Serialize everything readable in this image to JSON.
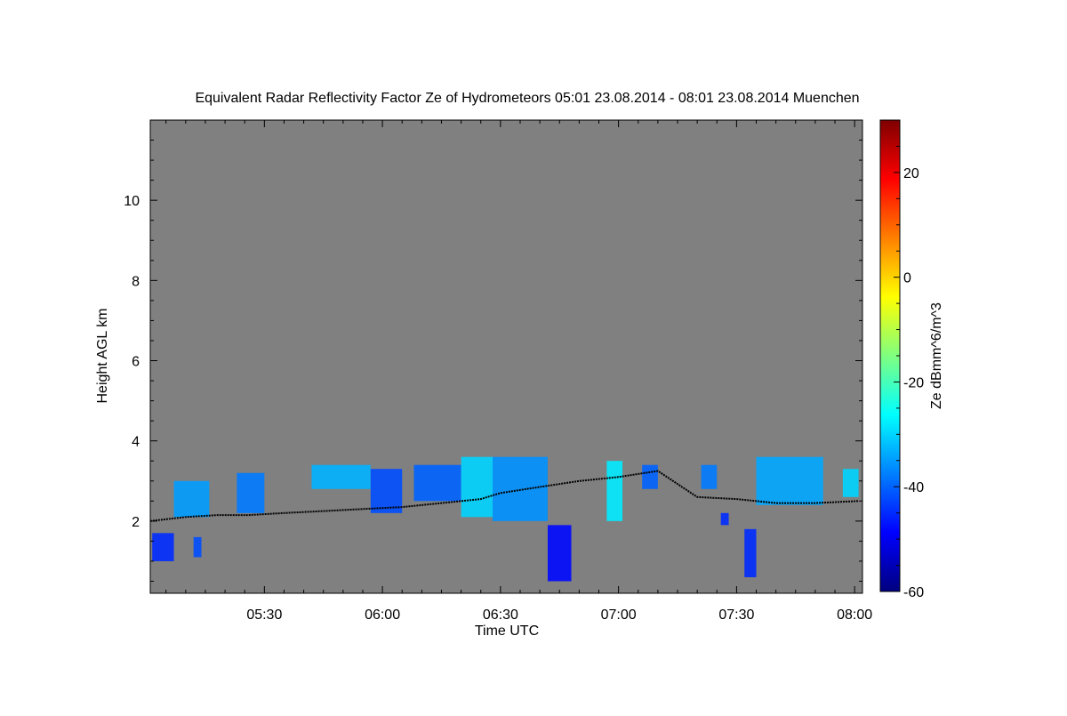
{
  "chart_data": {
    "type": "heatmap",
    "title": "Equivalent Radar Reflectivity Factor Ze of Hydrometeors   05:01 23.08.2014 - 08:01 23.08.2014 Muenchen",
    "xlabel": "Time UTC",
    "ylabel": "Height AGL km",
    "x_range": [
      "05:01",
      "08:01"
    ],
    "xlim_minutes": [
      301,
      482
    ],
    "ylim": [
      0.2,
      12.0
    ],
    "x_ticks": [
      {
        "label": "05:30",
        "minutes": 330
      },
      {
        "label": "06:00",
        "minutes": 360
      },
      {
        "label": "06:30",
        "minutes": 390
      },
      {
        "label": "07:00",
        "minutes": 420
      },
      {
        "label": "07:30",
        "minutes": 450
      },
      {
        "label": "08:00",
        "minutes": 480
      }
    ],
    "y_ticks": [
      2,
      4,
      6,
      8,
      10
    ],
    "no_data_color": "#808080",
    "colorbar": {
      "label": "Ze dBmm^6/m^3",
      "range": [
        -60,
        30
      ],
      "ticks": [
        -60,
        -40,
        -20,
        0,
        20
      ],
      "colormap": "jet"
    },
    "echo_regions": [
      {
        "t0": 301.5,
        "t1": 307,
        "h0": 1.0,
        "h1": 1.7,
        "ze": -45
      },
      {
        "t0": 312,
        "t1": 314,
        "h0": 1.1,
        "h1": 1.6,
        "ze": -42
      },
      {
        "t0": 307,
        "t1": 316,
        "h0": 2.1,
        "h1": 3.0,
        "ze": -35
      },
      {
        "t0": 323,
        "t1": 330,
        "h0": 2.2,
        "h1": 3.2,
        "ze": -38
      },
      {
        "t0": 342,
        "t1": 357,
        "h0": 2.8,
        "h1": 3.4,
        "ze": -33
      },
      {
        "t0": 357,
        "t1": 365,
        "h0": 2.2,
        "h1": 3.3,
        "ze": -42
      },
      {
        "t0": 368,
        "t1": 380,
        "h0": 2.5,
        "h1": 3.4,
        "ze": -40
      },
      {
        "t0": 380,
        "t1": 388,
        "h0": 2.1,
        "h1": 3.6,
        "ze": -30
      },
      {
        "t0": 388,
        "t1": 402,
        "h0": 2.0,
        "h1": 3.6,
        "ze": -36
      },
      {
        "t0": 402,
        "t1": 408,
        "h0": 0.5,
        "h1": 1.9,
        "ze": -48
      },
      {
        "t0": 417,
        "t1": 421,
        "h0": 2.0,
        "h1": 3.5,
        "ze": -28
      },
      {
        "t0": 426,
        "t1": 430,
        "h0": 2.8,
        "h1": 3.4,
        "ze": -40
      },
      {
        "t0": 441,
        "t1": 445,
        "h0": 2.8,
        "h1": 3.4,
        "ze": -38
      },
      {
        "t0": 446,
        "t1": 448,
        "h0": 1.9,
        "h1": 2.2,
        "ze": -45
      },
      {
        "t0": 452,
        "t1": 455,
        "h0": 0.6,
        "h1": 1.8,
        "ze": -45
      },
      {
        "t0": 455,
        "t1": 472,
        "h0": 2.4,
        "h1": 3.6,
        "ze": -34
      },
      {
        "t0": 477,
        "t1": 481,
        "h0": 2.6,
        "h1": 3.3,
        "ze": -30
      }
    ],
    "cloud_base": [
      {
        "t": 301,
        "h": 2.0
      },
      {
        "t": 310,
        "h": 2.1
      },
      {
        "t": 318,
        "h": 2.15
      },
      {
        "t": 326,
        "h": 2.15
      },
      {
        "t": 335,
        "h": 2.2
      },
      {
        "t": 345,
        "h": 2.25
      },
      {
        "t": 355,
        "h": 2.3
      },
      {
        "t": 365,
        "h": 2.35
      },
      {
        "t": 375,
        "h": 2.45
      },
      {
        "t": 385,
        "h": 2.55
      },
      {
        "t": 390,
        "h": 2.7
      },
      {
        "t": 400,
        "h": 2.85
      },
      {
        "t": 410,
        "h": 3.0
      },
      {
        "t": 420,
        "h": 3.1
      },
      {
        "t": 430,
        "h": 3.25
      },
      {
        "t": 440,
        "h": 2.6
      },
      {
        "t": 450,
        "h": 2.55
      },
      {
        "t": 460,
        "h": 2.45
      },
      {
        "t": 470,
        "h": 2.45
      },
      {
        "t": 481,
        "h": 2.5
      }
    ]
  }
}
